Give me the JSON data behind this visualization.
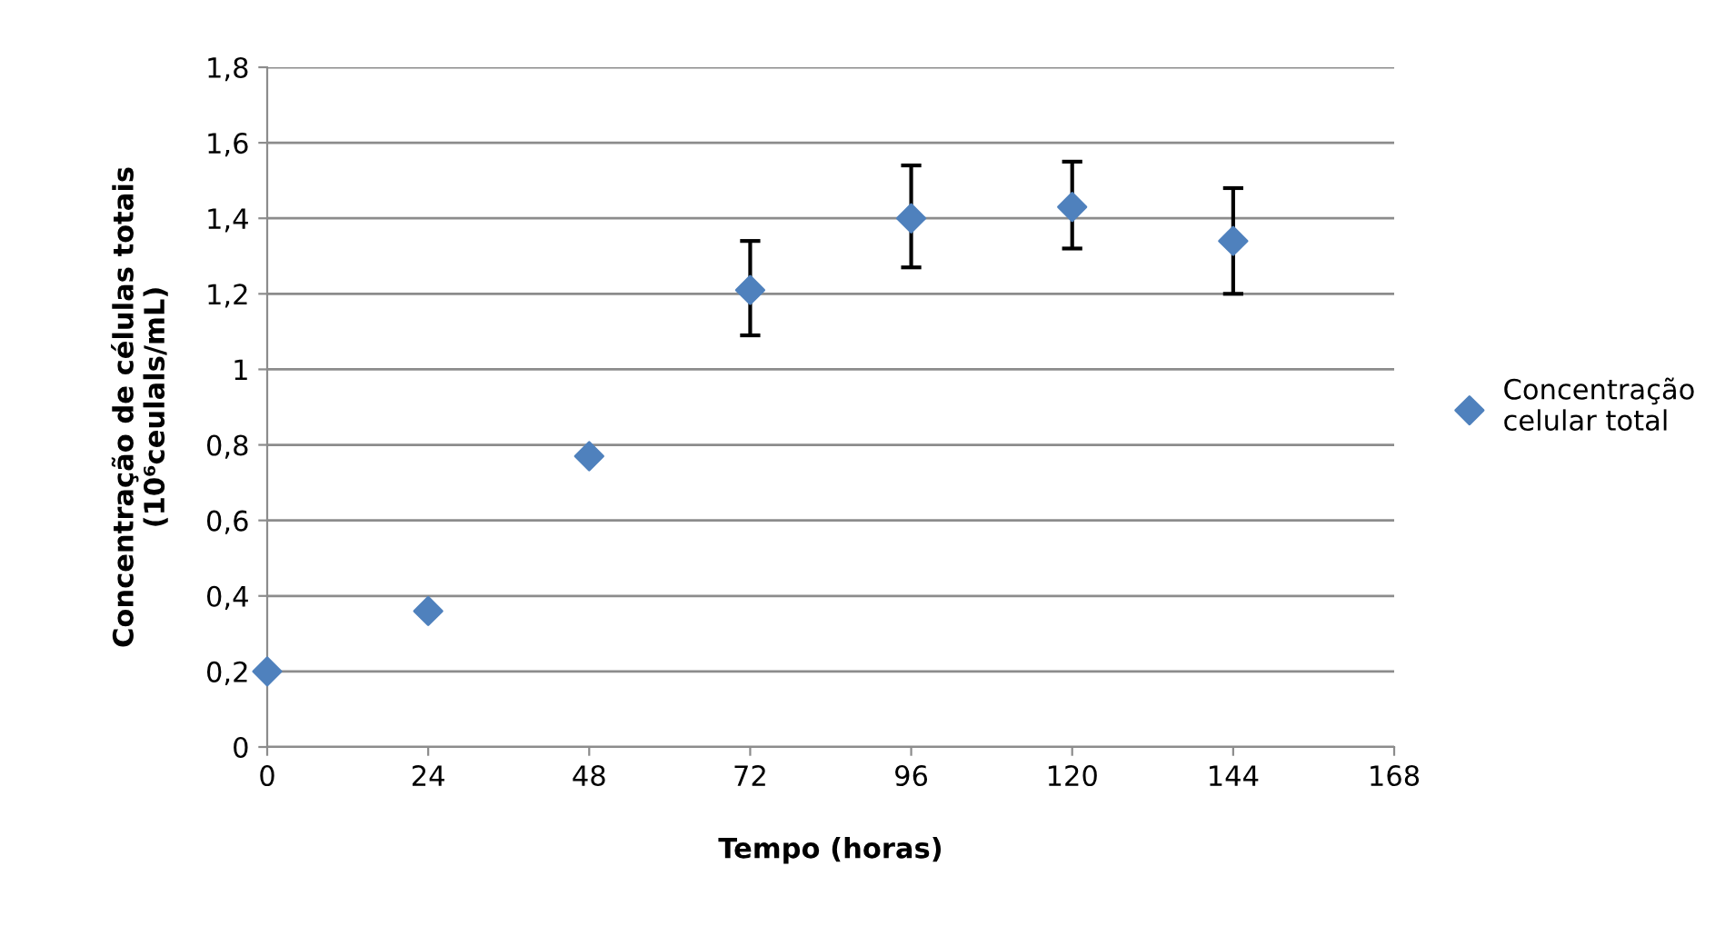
{
  "chart_data": {
    "type": "scatter",
    "xlabel": "Tempo (horas)",
    "ylabel": "Concentração de células totais\n(10⁶ceulals/mL)",
    "x": [
      0,
      24,
      48,
      72,
      96,
      120,
      144
    ],
    "series": [
      {
        "name": "Concentração\ncelular total",
        "color": "#4f81bd",
        "values": [
          0.2,
          0.36,
          0.77,
          1.21,
          1.4,
          1.43,
          1.34
        ],
        "errors": [
          null,
          null,
          null,
          [
            1.09,
            1.34
          ],
          [
            1.27,
            1.54
          ],
          [
            1.32,
            1.55
          ],
          [
            1.2,
            1.48
          ]
        ]
      }
    ],
    "xlim": [
      0,
      168
    ],
    "xticks": [
      0,
      24,
      48,
      72,
      96,
      120,
      144,
      168
    ],
    "ylim": [
      0,
      1.8
    ],
    "yticks": [
      {
        "value": 0,
        "label": "0"
      },
      {
        "value": 0.2,
        "label": "0,2"
      },
      {
        "value": 0.4,
        "label": "0,4"
      },
      {
        "value": 0.6,
        "label": "0,6"
      },
      {
        "value": 0.8,
        "label": "0,8"
      },
      {
        "value": 1,
        "label": "1"
      },
      {
        "value": 1.2,
        "label": "1,2"
      },
      {
        "value": 1.4,
        "label": "1,4"
      },
      {
        "value": 1.6,
        "label": "1,6"
      },
      {
        "value": 1.8,
        "label": "1,8"
      }
    ],
    "grid": "y",
    "legend": "right",
    "marker": "diamond"
  }
}
